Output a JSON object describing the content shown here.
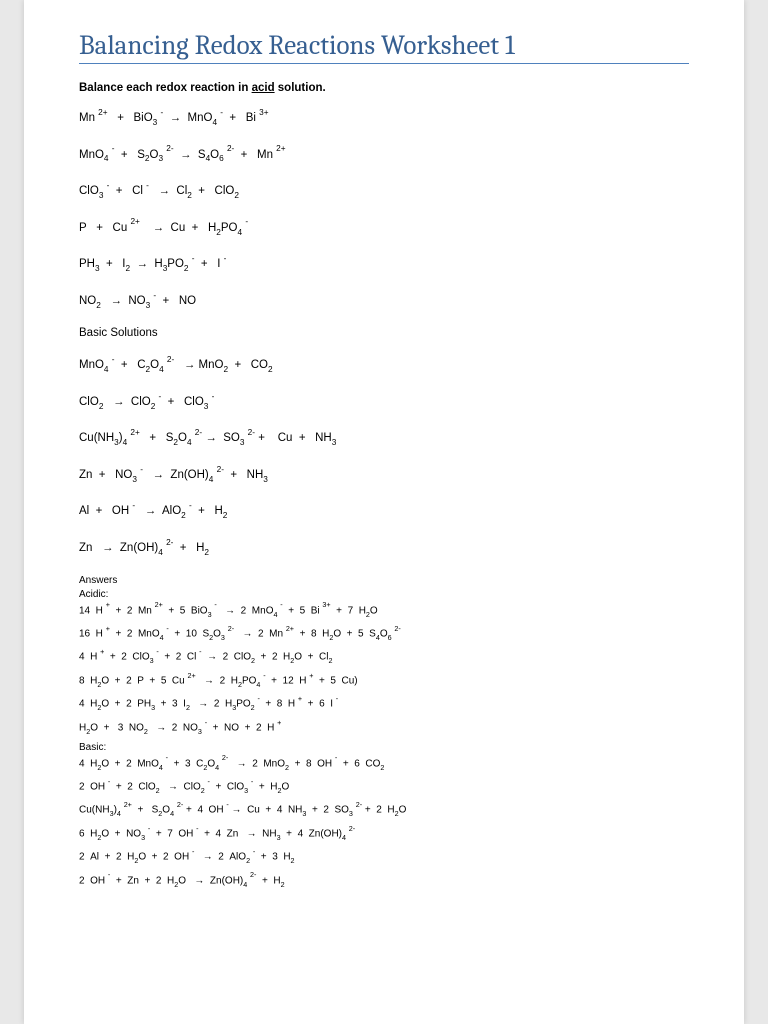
{
  "title": "Balancing Redox Reactions Worksheet 1",
  "intro_prefix": "Balance each redox reaction in ",
  "intro_underlined": "acid",
  "intro_suffix": " solution.",
  "acid_equations": [
    "Mn <sup>2+</sup>&nbsp;&nbsp; + &nbsp; BiO<sub>3</sub> <sup>-</sup>&nbsp; <span class='arr'>&rarr;</span>&nbsp; MnO<sub>4</sub> <sup>-</sup>&nbsp; + &nbsp; Bi <sup>3+</sup>",
    "MnO<sub>4</sub> <sup>-</sup>&nbsp; + &nbsp; S<sub>2</sub>O<sub>3</sub> <sup>2-</sup>&nbsp; <span class='arr'>&rarr;</span>&nbsp; S<sub>4</sub>O<sub>6</sub> <sup>2-</sup>&nbsp; + &nbsp; Mn <sup>2+</sup>",
    "ClO<sub>3</sub> <sup>-</sup>&nbsp; + &nbsp; Cl <sup>-</sup>&nbsp;&nbsp; <span class='arr'>&rarr;</span>&nbsp; Cl<sub>2</sub>&nbsp; + &nbsp; ClO<sub>2</sub>",
    "P&nbsp;&nbsp; + &nbsp; Cu <sup>2+</sup>&nbsp;&nbsp;&nbsp; <span class='arr'>&rarr;</span>&nbsp; Cu&nbsp; + &nbsp; H<sub>2</sub>PO<sub>4</sub> <sup>-</sup>",
    "PH<sub>3</sub>&nbsp; + &nbsp; I<sub>2</sub>&nbsp; <span class='arr'>&rarr;</span>&nbsp; H<sub>3</sub>PO<sub>2</sub> <sup>-</sup>&nbsp; + &nbsp; I <sup>-</sup>",
    "NO<sub>2</sub>&nbsp;&nbsp; <span class='arr'>&rarr;</span>&nbsp; NO<sub>3</sub> <sup>-</sup>&nbsp; + &nbsp; NO"
  ],
  "basic_heading": "Basic Solutions",
  "basic_equations": [
    "MnO<sub>4</sub> <sup>-</sup>&nbsp; + &nbsp; C<sub>2</sub>O<sub>4</sub> <sup>2-</sup>&nbsp;&nbsp; <span class='arr'>&rarr;</span> MnO<sub>2</sub>&nbsp; + &nbsp; CO<sub>2</sub>",
    "ClO<sub>2</sub>&nbsp;&nbsp; <span class='arr'>&rarr;</span>&nbsp; ClO<sub>2</sub> <sup>-</sup>&nbsp; + &nbsp; ClO<sub>3</sub> <sup>-</sup>",
    "Cu(NH<sub>3</sub>)<sub>4</sub> <sup>2+</sup>&nbsp;&nbsp; + &nbsp; S<sub>2</sub>O<sub>4</sub> <sup>2-</sup> <span class='arr'>&rarr;</span>&nbsp;  SO<sub>3</sub> <sup>2-</sup> + &nbsp;&nbsp; Cu&nbsp; + &nbsp; NH<sub>3</sub>",
    "Zn&nbsp; + &nbsp; NO<sub>3</sub> <sup>-</sup>&nbsp;&nbsp; <span class='arr'>&rarr;</span>&nbsp; Zn(OH)<sub>4</sub> <sup>2-</sup>&nbsp; + &nbsp; NH<sub>3</sub>",
    "Al&nbsp; + &nbsp; OH <sup>-</sup>&nbsp;&nbsp; <span class='arr'>&rarr;</span>&nbsp; AlO<sub>2</sub> <sup>-</sup>&nbsp; + &nbsp; H<sub>2</sub>",
    "Zn&nbsp;&nbsp; <span class='arr'>&rarr;</span>&nbsp; Zn(OH)<sub>4</sub> <sup>2-</sup>&nbsp; + &nbsp; H<sub>2</sub>"
  ],
  "answers_heading": "Answers",
  "acidic_label": "Acidic:",
  "acidic_answers": [
    "14 &nbsp;H <sup>+</sup>&nbsp; + &nbsp;2 &nbsp;Mn <sup>2+</sup>&nbsp; + &nbsp;5 &nbsp;BiO<sub>3</sub> <sup>-</sup>&nbsp;&nbsp; <span class='arr'>&rarr;</span>&nbsp; 2 &nbsp;MnO<sub>4</sub> <sup>-</sup>&nbsp; + &nbsp;5 &nbsp;Bi <sup>3+</sup>&nbsp; + &nbsp;7 &nbsp;H<sub>2</sub>O",
    "16 &nbsp;H <sup>+</sup>&nbsp; + &nbsp;2 &nbsp;MnO<sub>4</sub> <sup>-</sup>&nbsp; + &nbsp;10 &nbsp;S<sub>2</sub>O<sub>3</sub> <sup>2-</sup>&nbsp;&nbsp; <span class='arr'>&rarr;</span>&nbsp; 2 &nbsp;Mn <sup>2+</sup>&nbsp; + &nbsp;8 &nbsp;H<sub>2</sub>O&nbsp; + &nbsp;5 &nbsp;S<sub>4</sub>O<sub>6</sub> <sup>2-</sup>",
    "4 &nbsp;H <sup>+</sup>&nbsp; + &nbsp;2 &nbsp;ClO<sub>3</sub> <sup>-</sup>&nbsp; + &nbsp;2 &nbsp;Cl <sup>-</sup>&nbsp; <span class='arr'>&rarr;</span>&nbsp; 2 &nbsp;ClO<sub>2</sub>&nbsp; + &nbsp;2 &nbsp;H<sub>2</sub>O&nbsp; + &nbsp;Cl<sub>2</sub>",
    "8 &nbsp;H<sub>2</sub>O&nbsp; + &nbsp;2 &nbsp;P&nbsp; + &nbsp;5 &nbsp;Cu <sup>2+</sup>&nbsp;&nbsp; <span class='arr'>&rarr;</span>&nbsp; 2 &nbsp;H<sub>2</sub>PO<sub>4</sub> <sup>-</sup>&nbsp; + &nbsp;12 &nbsp;H <sup>+</sup>&nbsp; + &nbsp;5 &nbsp;Cu)",
    "4 &nbsp;H<sub>2</sub>O&nbsp; + &nbsp;2 &nbsp;PH<sub>3</sub>&nbsp; + &nbsp;3 &nbsp;I<sub>2</sub>&nbsp;&nbsp; <span class='arr'>&rarr;</span>&nbsp; 2 &nbsp;H<sub>3</sub>PO<sub>2</sub> <sup>-</sup>&nbsp; + &nbsp;8 &nbsp;H <sup>+</sup>&nbsp; + &nbsp;6 &nbsp;I <sup>-</sup>",
    "H<sub>2</sub>O&nbsp; + &nbsp; 3 &nbsp;NO<sub>2</sub>&nbsp;&nbsp; <span class='arr'>&rarr;</span>&nbsp; 2 &nbsp;NO<sub>3</sub> <sup>-</sup>&nbsp; + &nbsp;NO&nbsp; + &nbsp;2 &nbsp;H <sup>+</sup>"
  ],
  "basic_label": "Basic:",
  "basic_answers": [
    "4 &nbsp;H<sub>2</sub>O&nbsp; + &nbsp;2 &nbsp;MnO<sub>4</sub> <sup>-</sup>&nbsp; + &nbsp;3 &nbsp;C<sub>2</sub>O<sub>4</sub> <sup>2-</sup>&nbsp;&nbsp; <span class='arr'>&rarr;</span>&nbsp; 2 &nbsp;MnO<sub>2</sub>&nbsp; + &nbsp;8 &nbsp;OH <sup>-</sup>&nbsp; + &nbsp;6 &nbsp;CO<sub>2</sub>",
    "2 &nbsp;OH <sup>-</sup>&nbsp; + &nbsp;2 &nbsp;ClO<sub>2</sub>&nbsp;&nbsp; <span class='arr'>&rarr;</span>&nbsp; ClO<sub>2</sub> <sup>-</sup>&nbsp; + &nbsp;ClO<sub>3</sub> <sup>-</sup>&nbsp; + &nbsp;H<sub>2</sub>O",
    "Cu(NH<sub>3</sub>)<sub>4</sub> <sup>2+</sup>&nbsp; + &nbsp; S<sub>2</sub>O<sub>4</sub> <sup>2-</sup>&nbsp;+ &nbsp;4 &nbsp;OH <sup>-</sup> <span class='arr'>&rarr;</span>&nbsp; Cu&nbsp; + &nbsp;4 &nbsp;NH<sub>3</sub>&nbsp; + &nbsp;2 &nbsp;SO<sub>3</sub> <sup>2-</sup>&nbsp;+ &nbsp;2 &nbsp;H<sub>2</sub>O",
    "6 &nbsp;H<sub>2</sub>O&nbsp; + &nbsp;NO<sub>3</sub> <sup>-</sup>&nbsp; + &nbsp;7 &nbsp;OH <sup>-</sup>&nbsp; + &nbsp;4 &nbsp;Zn&nbsp;&nbsp; <span class='arr'>&rarr;</span>&nbsp; NH<sub>3</sub>&nbsp; + &nbsp;4 &nbsp;Zn(OH)<sub>4</sub> <sup>2-</sup>",
    "2 &nbsp;Al&nbsp; + &nbsp;2 &nbsp;H<sub>2</sub>O&nbsp; + &nbsp;2 &nbsp;OH <sup>-</sup>&nbsp;&nbsp; <span class='arr'>&rarr;</span>&nbsp; 2 &nbsp;AlO<sub>2</sub> <sup>-</sup>&nbsp; + &nbsp;3 &nbsp;H<sub>2</sub>",
    "2 &nbsp;OH <sup>-</sup>&nbsp; + &nbsp;Zn&nbsp; + &nbsp;2 &nbsp;H<sub>2</sub>O&nbsp;&nbsp; <span class='arr'>&rarr;</span>&nbsp; Zn(OH)<sub>4</sub> <sup>2-</sup>&nbsp; + &nbsp;H<sub>2</sub>"
  ],
  "colors": {
    "title_color": "#365f91",
    "title_rule": "#4f81bd",
    "page_bg": "#ffffff",
    "body_bg": "#e8e8e8"
  }
}
